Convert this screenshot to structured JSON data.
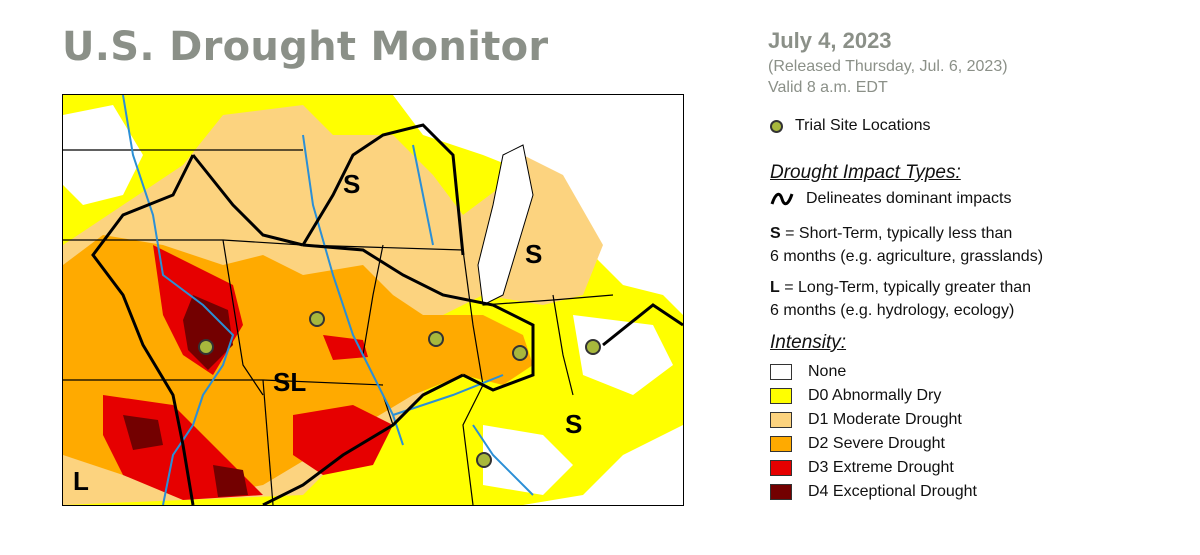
{
  "title": "U.S. Drought Monitor",
  "date": "July 4, 2023",
  "released": "(Released Thursday, Jul. 6, 2023)",
  "valid": "Valid 8 a.m. EDT",
  "trial_label": "Trial Site Locations",
  "impact_heading": "Drought Impact Types:",
  "delineates": "Delineates dominant impacts",
  "short_key": "S",
  "short_desc_a": " = Short-Term, typically less than",
  "short_desc_b": "6 months (e.g. agriculture, grasslands)",
  "long_key": "L",
  "long_desc_a": " = Long-Term, typically greater than",
  "long_desc_b": "6 months (e.g. hydrology, ecology)",
  "intensity_heading": "Intensity:",
  "legend": [
    {
      "label": "None",
      "color": "#ffffff"
    },
    {
      "label": "D0 Abnormally Dry",
      "color": "#ffff00"
    },
    {
      "label": "D1 Moderate Drought",
      "color": "#fcd37f"
    },
    {
      "label": "D2 Severe Drought",
      "color": "#ffaa00"
    },
    {
      "label": "D3 Extreme Drought",
      "color": "#e60000"
    },
    {
      "label": "D4 Exceptional Drought",
      "color": "#730000"
    }
  ],
  "map_labels": {
    "s1": "S",
    "s2": "S",
    "s3": "S",
    "sl": "SL",
    "l": "L"
  },
  "colors": {
    "water": "#2b8fd6",
    "trial_site": "#a8b83c"
  }
}
